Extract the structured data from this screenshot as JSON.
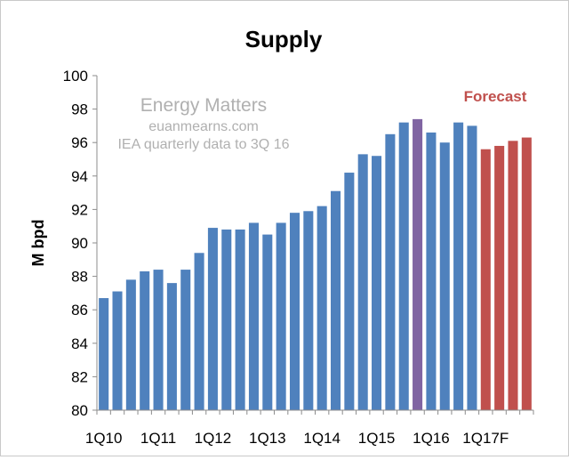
{
  "chart_data": {
    "type": "bar",
    "title": "Supply",
    "xlabel": "",
    "ylabel": "M bpd",
    "ylim": [
      80,
      100
    ],
    "yticks": [
      80,
      82,
      84,
      86,
      88,
      90,
      92,
      94,
      96,
      98,
      100
    ],
    "grid": false,
    "legend": "none",
    "categories": [
      "1Q10",
      "2Q10",
      "3Q10",
      "4Q10",
      "1Q11",
      "2Q11",
      "3Q11",
      "4Q11",
      "1Q12",
      "2Q12",
      "3Q12",
      "4Q12",
      "1Q13",
      "2Q13",
      "3Q13",
      "4Q13",
      "1Q14",
      "2Q14",
      "3Q14",
      "4Q14",
      "1Q15",
      "2Q15",
      "3Q15",
      "4Q15",
      "1Q16",
      "2Q16",
      "3Q16",
      "4Q16",
      "1Q17F",
      "2Q17F",
      "3Q17F",
      "4Q17F"
    ],
    "tick_labels": [
      {
        "index": 0,
        "label": "1Q10"
      },
      {
        "index": 4,
        "label": "1Q11"
      },
      {
        "index": 8,
        "label": "1Q12"
      },
      {
        "index": 12,
        "label": "1Q13"
      },
      {
        "index": 16,
        "label": "1Q14"
      },
      {
        "index": 20,
        "label": "1Q15"
      },
      {
        "index": 24,
        "label": "1Q16"
      },
      {
        "index": 28,
        "label": "1Q17F"
      }
    ],
    "values": [
      86.7,
      87.1,
      87.8,
      88.3,
      88.4,
      87.6,
      88.4,
      89.4,
      90.9,
      90.8,
      90.8,
      91.2,
      90.5,
      91.2,
      91.8,
      91.9,
      92.2,
      93.1,
      94.2,
      95.3,
      95.2,
      96.5,
      97.2,
      97.4,
      96.6,
      96.0,
      97.2,
      97.0,
      95.6,
      95.8,
      96.1,
      96.3
    ],
    "bar_groups": [
      "actual",
      "actual",
      "actual",
      "actual",
      "actual",
      "actual",
      "actual",
      "actual",
      "actual",
      "actual",
      "actual",
      "actual",
      "actual",
      "actual",
      "actual",
      "actual",
      "actual",
      "actual",
      "actual",
      "actual",
      "actual",
      "actual",
      "actual",
      "highlight",
      "actual",
      "actual",
      "actual",
      "actual",
      "forecast",
      "forecast",
      "forecast",
      "forecast"
    ],
    "colors": {
      "actual": "#4f81bd",
      "highlight": "#8064a2",
      "forecast": "#c0504d",
      "watermark": "#b0b0b0",
      "forecast_label": "#c0504d"
    },
    "annotations": {
      "watermark_line1": "Energy Matters",
      "watermark_line2": "euanmearns.com",
      "watermark_line3": "IEA quarterly data to 3Q 16",
      "forecast_label": "Forecast"
    }
  }
}
